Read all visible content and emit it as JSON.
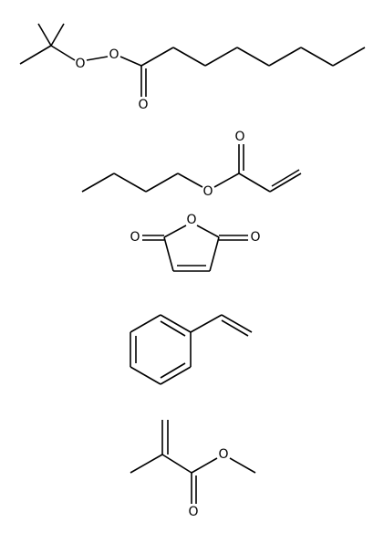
{
  "molecules": [
    {
      "atoms": [
        "O",
        "O",
        "O"
      ]
    },
    {
      "atoms": [
        "O",
        "O"
      ]
    },
    {
      "atoms": [
        "O",
        "O",
        "O"
      ]
    },
    {
      "atoms": []
    },
    {
      "atoms": [
        "O",
        "O"
      ]
    }
  ]
}
